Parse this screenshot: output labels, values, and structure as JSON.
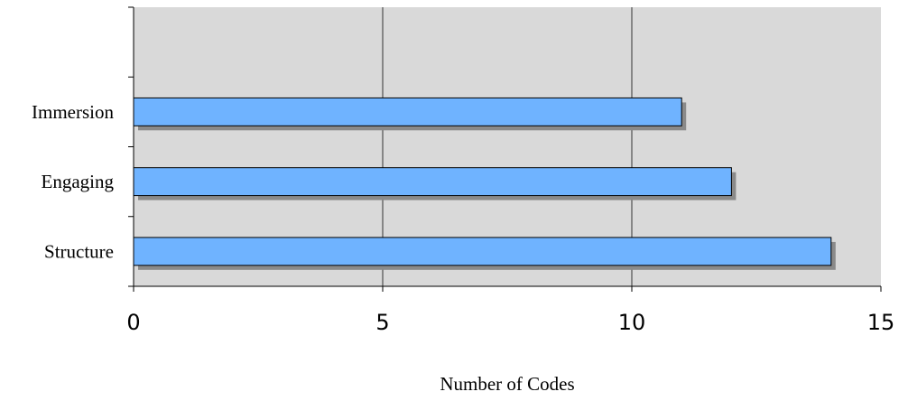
{
  "chart_data": {
    "type": "bar",
    "orientation": "horizontal",
    "categories": [
      "Immersion",
      "Engaging",
      "Structure"
    ],
    "values": [
      11,
      12,
      14
    ],
    "xlabel": "Number of Codes",
    "ylabel": "",
    "xlim": [
      0,
      15
    ],
    "x_ticks": [
      "0",
      "5",
      "10",
      "15"
    ],
    "grid": true,
    "legend": "none",
    "empty_slots_above": 1
  },
  "colors": {
    "plot_background": "#d9d9d9",
    "bar_fill": "#6fb3ff",
    "bar_shadow": "#8a8a8a",
    "gridline": "#333333",
    "axis": "#000000"
  }
}
